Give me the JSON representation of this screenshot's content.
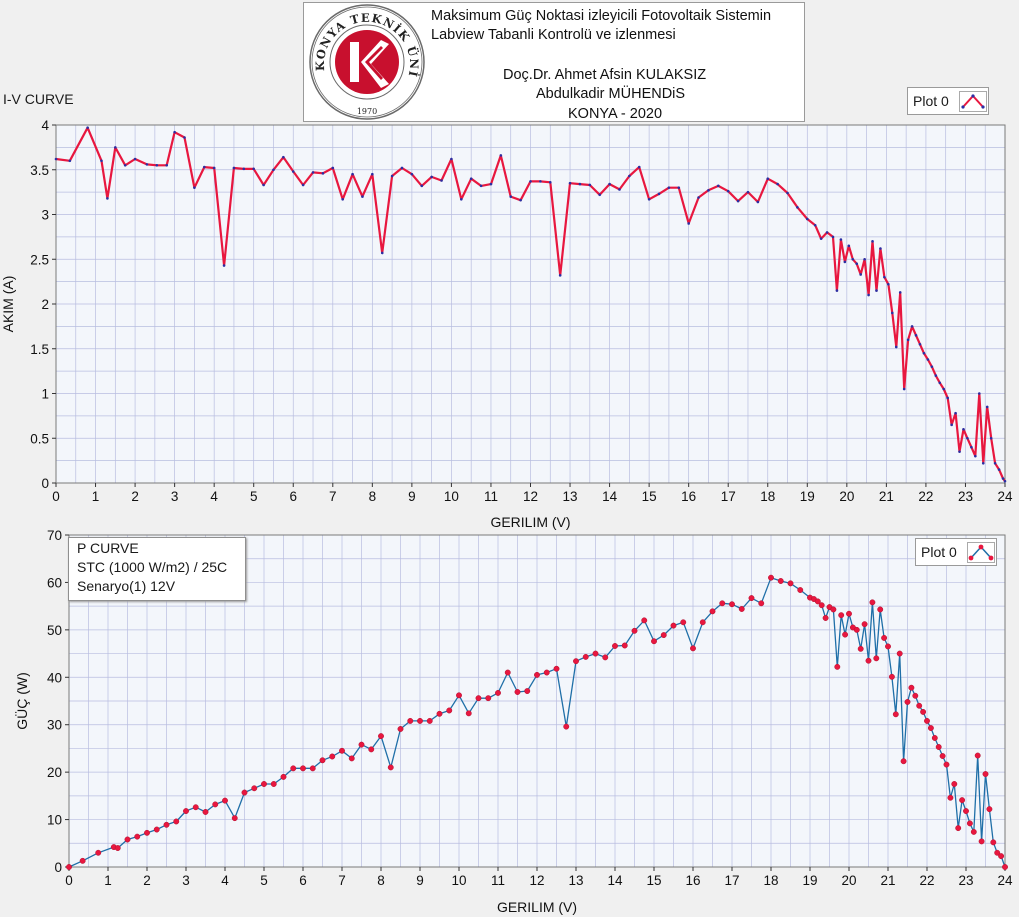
{
  "header": {
    "line1": "Maksimum Güç Noktasi izleyicili Fotovoltaik Sistemin",
    "line2": "Labview Tabanli Kontrolü ve izlenmesi",
    "line3": "Doç.Dr. Ahmet Afsin KULAKSIZ",
    "line4": "Abdulkadir MÜHENDiS",
    "line5": "KONYA - 2020",
    "logo_text": "KONYA TEKNİK ÜNİVERSİTESİ",
    "logo_year": "1970"
  },
  "colors": {
    "plot_bg": "#f3f6fb",
    "grid": "#b8bde0",
    "iv_line": "#e8173f",
    "iv_marker": "#2b2fa3",
    "p_line": "#1f6fa8",
    "p_marker": "#e8173f",
    "logo_red": "#c8102e"
  },
  "chart_data": [
    {
      "type": "line",
      "title": "I-V CURVE",
      "xlabel": "GERILIM (V)",
      "ylabel": "AKIM (A)",
      "xlim": [
        0,
        24
      ],
      "ylim": [
        0,
        4
      ],
      "xticks": [
        "0",
        "1",
        "2",
        "3",
        "4",
        "5",
        "6",
        "7",
        "8",
        "9",
        "10",
        "11",
        "12",
        "13",
        "14",
        "15",
        "16",
        "17",
        "18",
        "19",
        "20",
        "21",
        "22",
        "23",
        "24"
      ],
      "yticks": [
        "0",
        "0.5",
        "1",
        "1.5",
        "2",
        "2.5",
        "3",
        "3.5",
        "4"
      ],
      "grid": true,
      "legend": "top-right",
      "legend_label": "Plot 0",
      "series": [
        {
          "name": "Plot 0",
          "x": [
            0,
            0.35,
            0.8,
            1.15,
            1.3,
            1.5,
            1.75,
            2,
            2.3,
            2.55,
            2.8,
            3,
            3.25,
            3.5,
            3.75,
            4,
            4.25,
            4.5,
            4.75,
            5,
            5.25,
            5.5,
            5.75,
            6,
            6.25,
            6.5,
            6.75,
            7,
            7.25,
            7.5,
            7.75,
            8,
            8.25,
            8.5,
            8.75,
            9,
            9.25,
            9.5,
            9.75,
            10,
            10.25,
            10.5,
            10.75,
            11,
            11.25,
            11.5,
            11.75,
            12,
            12.25,
            12.5,
            12.75,
            13,
            13.25,
            13.5,
            13.75,
            14,
            14.25,
            14.5,
            14.75,
            15,
            15.25,
            15.5,
            15.75,
            16,
            16.25,
            16.5,
            16.75,
            17,
            17.25,
            17.5,
            17.75,
            18,
            18.25,
            18.5,
            18.75,
            19,
            19.2,
            19.35,
            19.5,
            19.65,
            19.75,
            19.85,
            19.95,
            20.05,
            20.15,
            20.25,
            20.35,
            20.45,
            20.55,
            20.65,
            20.75,
            20.85,
            20.95,
            21.05,
            21.15,
            21.25,
            21.35,
            21.45,
            21.55,
            21.65,
            21.75,
            21.85,
            21.95,
            22.05,
            22.15,
            22.25,
            22.35,
            22.45,
            22.55,
            22.65,
            22.75,
            22.85,
            22.95,
            23.05,
            23.15,
            23.25,
            23.35,
            23.45,
            23.55,
            23.65,
            23.75,
            23.85,
            23.95,
            24
          ],
          "y": [
            3.62,
            3.6,
            3.97,
            3.6,
            3.18,
            3.75,
            3.55,
            3.62,
            3.56,
            3.55,
            3.55,
            3.92,
            3.86,
            3.3,
            3.53,
            3.52,
            2.43,
            3.52,
            3.51,
            3.51,
            3.33,
            3.5,
            3.64,
            3.48,
            3.33,
            3.47,
            3.46,
            3.52,
            3.17,
            3.45,
            3.2,
            3.45,
            2.57,
            3.43,
            3.52,
            3.45,
            3.32,
            3.42,
            3.38,
            3.62,
            3.17,
            3.4,
            3.32,
            3.34,
            3.66,
            3.2,
            3.16,
            3.37,
            3.37,
            3.36,
            2.32,
            3.35,
            3.34,
            3.33,
            3.22,
            3.34,
            3.28,
            3.43,
            3.53,
            3.17,
            3.23,
            3.3,
            3.3,
            2.9,
            3.19,
            3.27,
            3.32,
            3.26,
            3.15,
            3.25,
            3.14,
            3.4,
            3.34,
            3.24,
            3.08,
            2.95,
            2.88,
            2.73,
            2.8,
            2.75,
            2.15,
            2.72,
            2.47,
            2.65,
            2.5,
            2.45,
            2.33,
            2.5,
            2.1,
            2.7,
            2.15,
            2.62,
            2.3,
            2.22,
            1.9,
            1.52,
            2.13,
            1.05,
            1.6,
            1.75,
            1.65,
            1.55,
            1.45,
            1.38,
            1.3,
            1.2,
            1.12,
            1.05,
            0.95,
            0.65,
            0.78,
            0.35,
            0.6,
            0.5,
            0.4,
            0.3,
            1.0,
            0.22,
            0.85,
            0.5,
            0.22,
            0.15,
            0.05,
            0.02
          ]
        }
      ]
    },
    {
      "type": "line",
      "title": "P CURVE",
      "subtitle": "STC (1000 W/m2) / 25C",
      "annotation": "Senaryo(1)  12V",
      "xlabel": "GERILIM (V)",
      "ylabel": "GÜÇ (W)",
      "xlim": [
        0,
        24
      ],
      "ylim": [
        0,
        70
      ],
      "xticks": [
        "0",
        "1",
        "2",
        "3",
        "4",
        "5",
        "6",
        "7",
        "8",
        "9",
        "10",
        "11",
        "12",
        "13",
        "14",
        "15",
        "16",
        "17",
        "18",
        "19",
        "20",
        "21",
        "22",
        "23",
        "24"
      ],
      "yticks": [
        "0",
        "10",
        "20",
        "30",
        "40",
        "50",
        "60",
        "70"
      ],
      "grid": true,
      "legend": "top-right",
      "legend_label": "Plot 0",
      "series": [
        {
          "name": "Plot 0",
          "x": [
            0,
            0.35,
            0.75,
            1.15,
            1.25,
            1.5,
            1.75,
            2,
            2.25,
            2.5,
            2.75,
            3,
            3.25,
            3.5,
            3.75,
            4,
            4.25,
            4.5,
            4.75,
            5,
            5.25,
            5.5,
            5.75,
            6,
            6.25,
            6.5,
            6.75,
            7,
            7.25,
            7.5,
            7.75,
            8,
            8.25,
            8.5,
            8.75,
            9,
            9.25,
            9.5,
            9.75,
            10,
            10.25,
            10.5,
            10.75,
            11,
            11.25,
            11.5,
            11.75,
            12,
            12.25,
            12.5,
            12.75,
            13,
            13.25,
            13.5,
            13.75,
            14,
            14.25,
            14.5,
            14.75,
            15,
            15.25,
            15.5,
            15.75,
            16,
            16.25,
            16.5,
            16.75,
            17,
            17.25,
            17.5,
            17.75,
            18,
            18.25,
            18.5,
            18.75,
            19,
            19.1,
            19.2,
            19.3,
            19.4,
            19.5,
            19.6,
            19.7,
            19.8,
            19.9,
            20,
            20.1,
            20.2,
            20.3,
            20.4,
            20.5,
            20.6,
            20.7,
            20.8,
            20.9,
            21,
            21.1,
            21.2,
            21.3,
            21.4,
            21.5,
            21.6,
            21.7,
            21.8,
            21.9,
            22,
            22.1,
            22.2,
            22.3,
            22.4,
            22.5,
            22.6,
            22.7,
            22.8,
            22.9,
            23,
            23.1,
            23.2,
            23.3,
            23.4,
            23.5,
            23.6,
            23.7,
            23.8,
            23.9,
            24
          ],
          "y": [
            0,
            1.3,
            3,
            4.2,
            4.0,
            5.8,
            6.4,
            7.2,
            7.9,
            8.9,
            9.6,
            11.8,
            12.6,
            11.6,
            13.2,
            14,
            10.3,
            15.7,
            16.6,
            17.5,
            17.5,
            19,
            20.8,
            20.8,
            20.8,
            22.5,
            23.3,
            24.5,
            22.9,
            25.8,
            24.8,
            27.6,
            21,
            29.1,
            30.8,
            30.8,
            30.8,
            32.3,
            33,
            36.2,
            32.4,
            35.6,
            35.6,
            36.7,
            41,
            36.9,
            37.1,
            40.5,
            41,
            41.8,
            29.6,
            43.4,
            44.3,
            45,
            44.2,
            46.6,
            46.7,
            49.8,
            52,
            47.6,
            48.9,
            50.9,
            51.6,
            46.1,
            51.6,
            53.9,
            55.6,
            55.4,
            54.4,
            56.7,
            55.6,
            61,
            60.3,
            59.8,
            58.4,
            56.8,
            56.5,
            56,
            55.2,
            52.5,
            54.8,
            54.3,
            42.2,
            53.1,
            49,
            53.4,
            50.5,
            50,
            46,
            51.2,
            43.5,
            55.8,
            44,
            54.3,
            48.3,
            46.5,
            40.1,
            32.2,
            45,
            22.3,
            34.8,
            37.8,
            36.1,
            34,
            32.7,
            30.8,
            29.3,
            27.2,
            25.3,
            23.4,
            21.6,
            14.6,
            17.5,
            8.2,
            14.1,
            11.8,
            9.2,
            7.4,
            23.5,
            5.4,
            19.6,
            12.2,
            5.2,
            3,
            2.3,
            0
          ]
        }
      ]
    }
  ]
}
